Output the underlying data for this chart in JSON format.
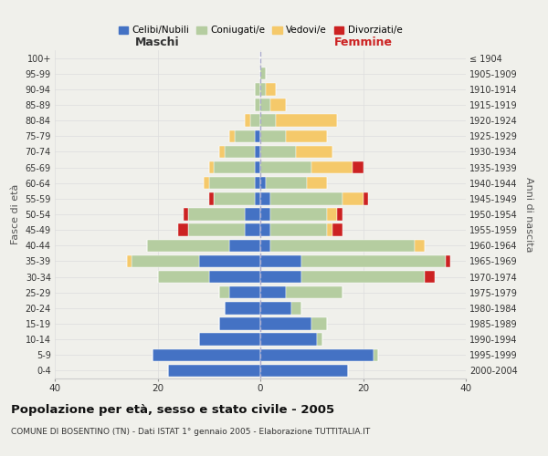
{
  "age_groups": [
    "0-4",
    "5-9",
    "10-14",
    "15-19",
    "20-24",
    "25-29",
    "30-34",
    "35-39",
    "40-44",
    "45-49",
    "50-54",
    "55-59",
    "60-64",
    "65-69",
    "70-74",
    "75-79",
    "80-84",
    "85-89",
    "90-94",
    "95-99",
    "100+"
  ],
  "birth_years": [
    "2000-2004",
    "1995-1999",
    "1990-1994",
    "1985-1989",
    "1980-1984",
    "1975-1979",
    "1970-1974",
    "1965-1969",
    "1960-1964",
    "1955-1959",
    "1950-1954",
    "1945-1949",
    "1940-1944",
    "1935-1939",
    "1930-1934",
    "1925-1929",
    "1920-1924",
    "1915-1919",
    "1910-1914",
    "1905-1909",
    "≤ 1904"
  ],
  "male": {
    "celibi": [
      18,
      21,
      12,
      8,
      7,
      6,
      10,
      12,
      6,
      3,
      3,
      1,
      1,
      1,
      1,
      1,
      0,
      0,
      0,
      0,
      0
    ],
    "coniugati": [
      0,
      0,
      0,
      0,
      0,
      2,
      10,
      13,
      16,
      11,
      11,
      8,
      9,
      8,
      6,
      4,
      2,
      1,
      1,
      0,
      0
    ],
    "vedovi": [
      0,
      0,
      0,
      0,
      0,
      0,
      0,
      1,
      0,
      0,
      0,
      0,
      1,
      1,
      1,
      1,
      1,
      0,
      0,
      0,
      0
    ],
    "divorziati": [
      0,
      0,
      0,
      0,
      0,
      0,
      0,
      0,
      0,
      2,
      1,
      1,
      0,
      0,
      0,
      0,
      0,
      0,
      0,
      0,
      0
    ]
  },
  "female": {
    "nubili": [
      17,
      22,
      11,
      10,
      6,
      5,
      8,
      8,
      2,
      2,
      2,
      2,
      1,
      0,
      0,
      0,
      0,
      0,
      0,
      0,
      0
    ],
    "coniugate": [
      0,
      1,
      1,
      3,
      2,
      11,
      24,
      28,
      28,
      11,
      11,
      14,
      8,
      10,
      7,
      5,
      3,
      2,
      1,
      1,
      0
    ],
    "vedove": [
      0,
      0,
      0,
      0,
      0,
      0,
      0,
      0,
      2,
      1,
      2,
      4,
      4,
      8,
      7,
      8,
      12,
      3,
      2,
      0,
      0
    ],
    "divorziate": [
      0,
      0,
      0,
      0,
      0,
      0,
      2,
      1,
      0,
      2,
      1,
      1,
      0,
      2,
      0,
      0,
      0,
      0,
      0,
      0,
      0
    ]
  },
  "colors": {
    "celibi_nubili": "#4472c4",
    "coniugati_e": "#b5cda0",
    "vedovi_e": "#f5c96a",
    "divorziati_e": "#cc2222"
  },
  "xlim": 40,
  "title": "Popolazione per età, sesso e stato civile - 2005",
  "subtitle": "COMUNE DI BOSENTINO (TN) - Dati ISTAT 1° gennaio 2005 - Elaborazione TUTTITALIA.IT",
  "ylabel_left": "Fasce di età",
  "ylabel_right": "Anni di nascita",
  "xlabel_left": "Maschi",
  "xlabel_right": "Femmine",
  "legend_labels": [
    "Celibi/Nubili",
    "Coniugati/e",
    "Vedovi/e",
    "Divorziati/e"
  ],
  "bg_color": "#f0f0eb"
}
